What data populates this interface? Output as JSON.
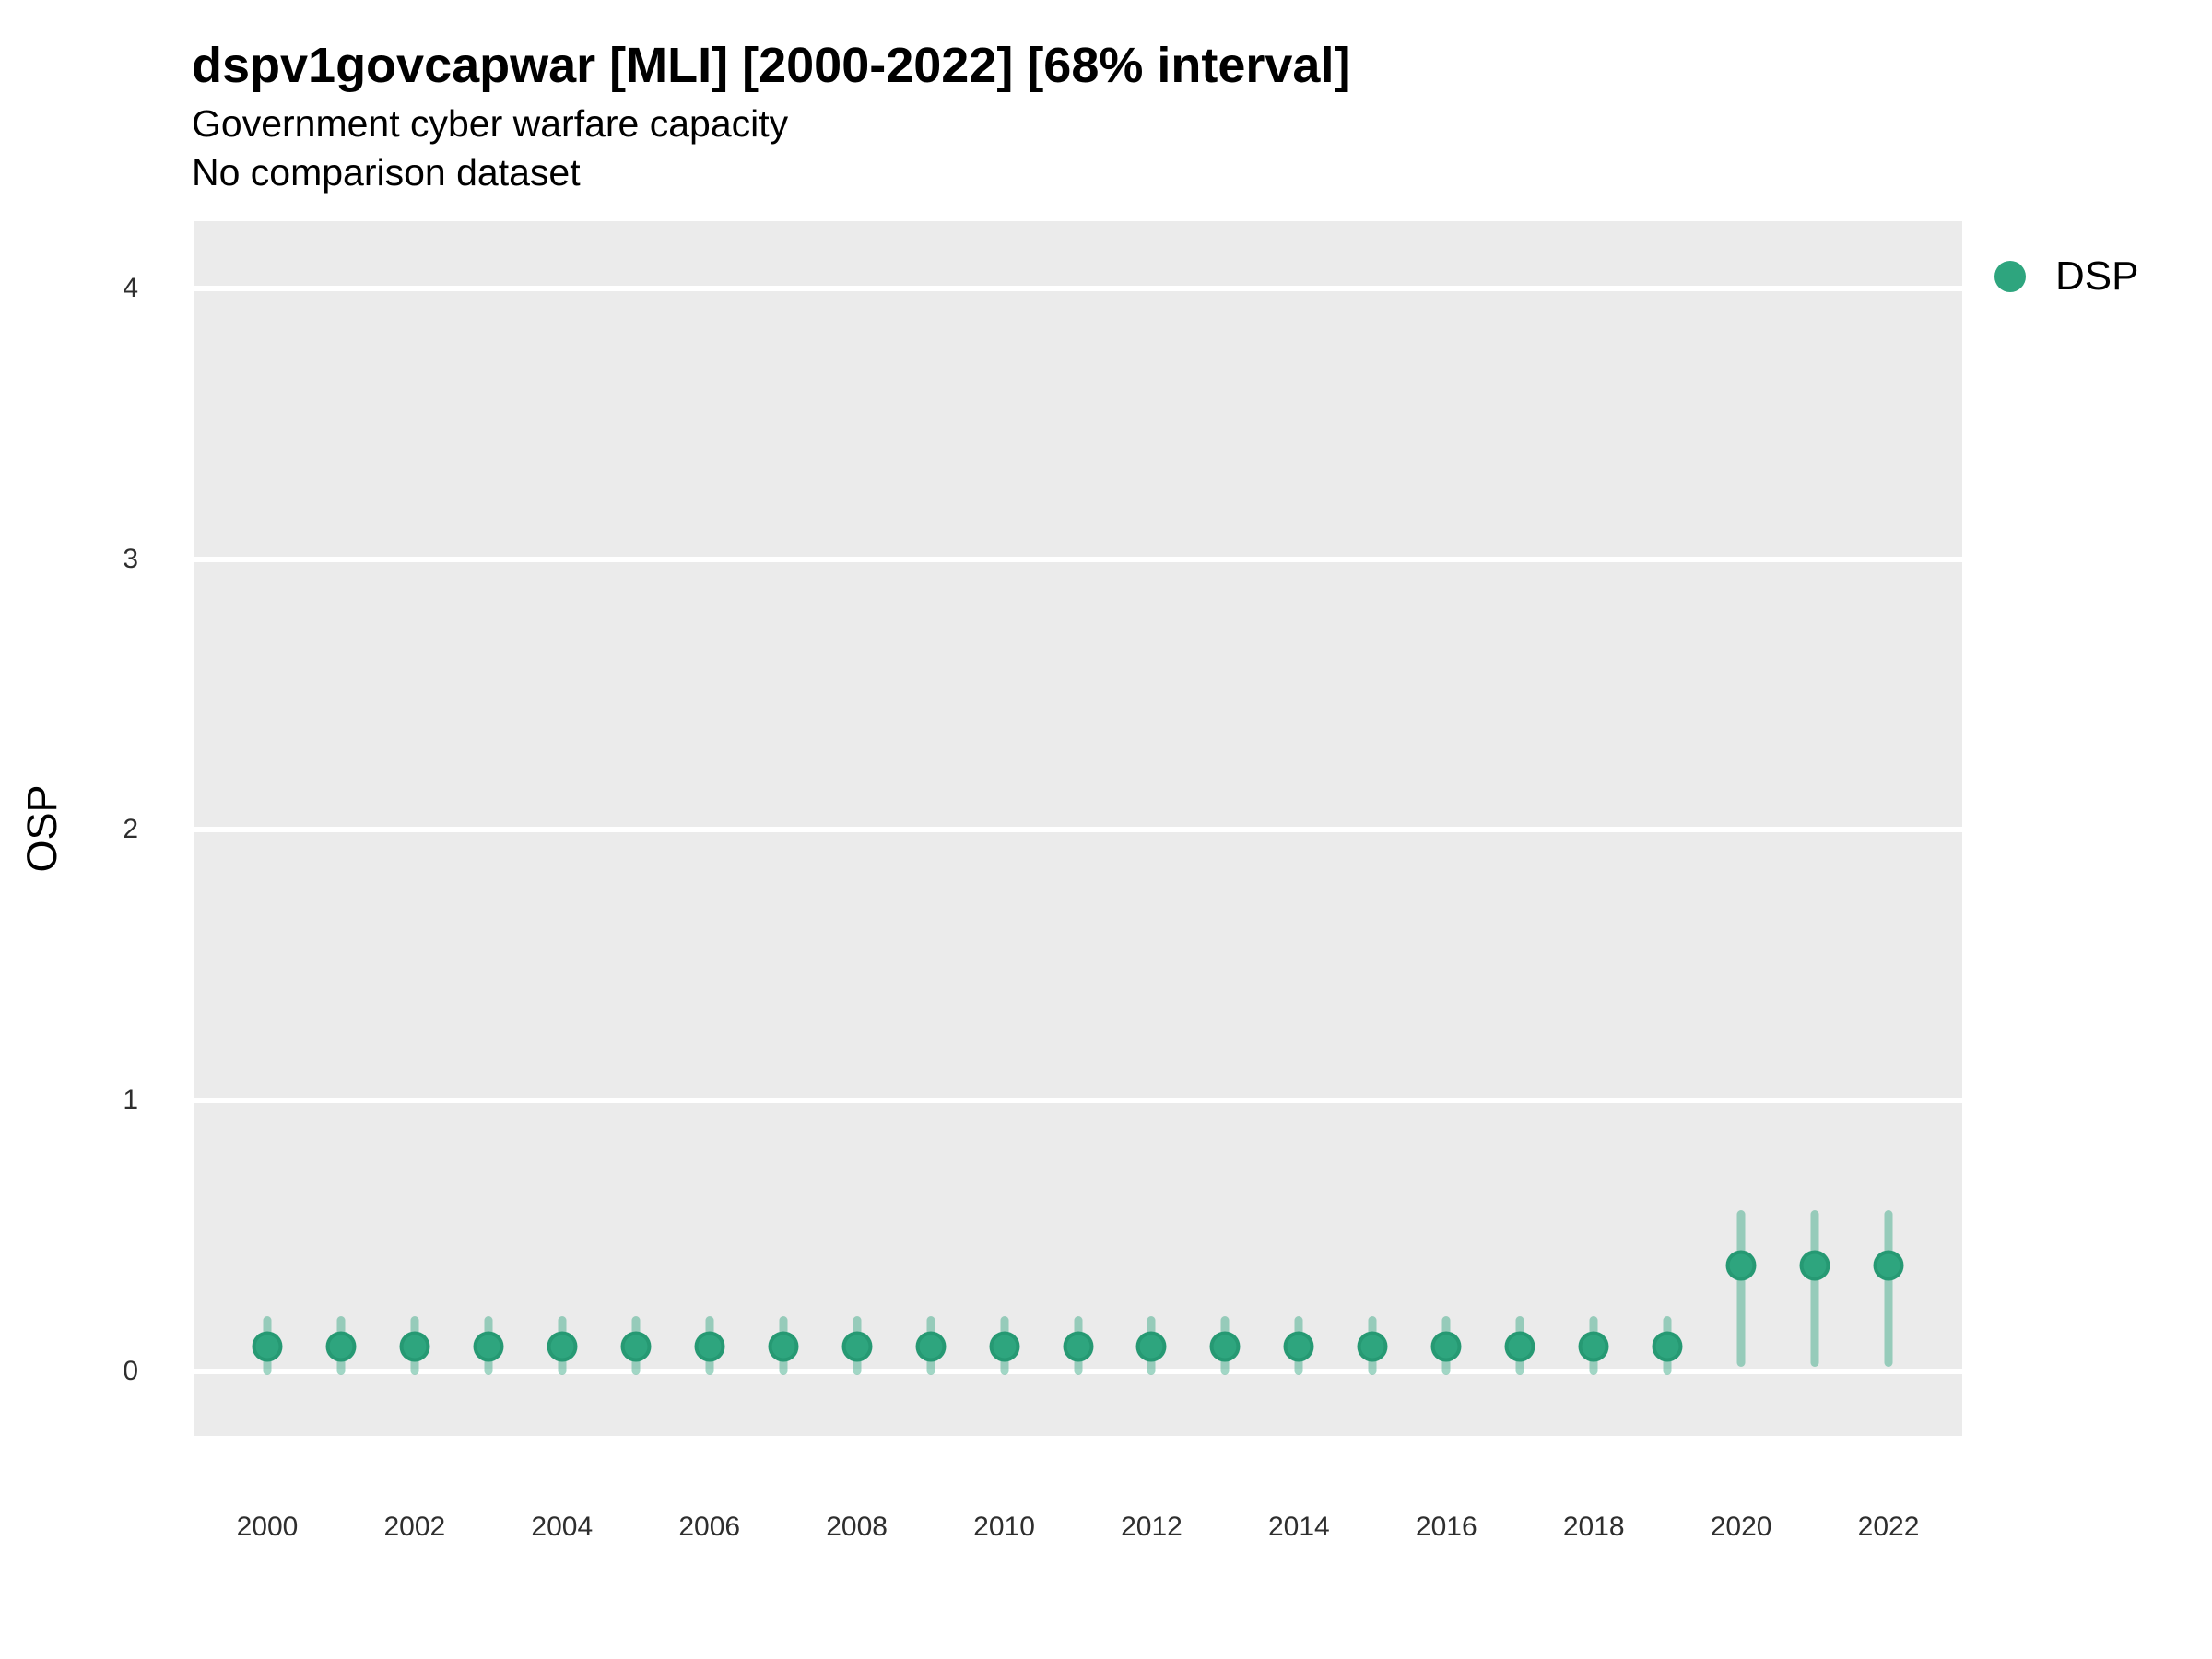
{
  "header": {
    "title": "dspv1govcapwar [MLI] [2000-2022] [68% interval]",
    "subtitle1": "Government cyber warfare capacity",
    "subtitle2": "No comparison dataset"
  },
  "legend": {
    "label": "DSP"
  },
  "colors": {
    "point": "#2EA57E",
    "point_ring": "rgba(27,134,98,0.38)",
    "errorbar": "rgba(46,165,126,0.45)",
    "panel_bg": "#EBEBEB",
    "gridline": "#FFFFFF"
  },
  "chart_data": {
    "type": "scatter",
    "title": "dspv1govcapwar [MLI] [2000-2022] [68% interval]",
    "subtitle": [
      "Government cyber warfare capacity",
      "No comparison dataset"
    ],
    "xlabel": "",
    "ylabel": "OSP",
    "interval": "68%",
    "legend_entries": [
      "DSP"
    ],
    "legend_position": "right",
    "grid": "horizontal-major-only",
    "xlim": [
      1999,
      2023
    ],
    "ylim": [
      -0.24,
      4.25
    ],
    "x_ticks": [
      2000,
      2002,
      2004,
      2006,
      2008,
      2010,
      2012,
      2014,
      2016,
      2018,
      2020,
      2022
    ],
    "y_ticks": [
      0,
      1,
      2,
      3,
      4
    ],
    "series": [
      {
        "name": "DSP",
        "points": [
          {
            "x": 2000,
            "y": 0.09,
            "lo": 0.0,
            "hi": 0.19
          },
          {
            "x": 2001,
            "y": 0.09,
            "lo": 0.0,
            "hi": 0.19
          },
          {
            "x": 2002,
            "y": 0.09,
            "lo": 0.0,
            "hi": 0.19
          },
          {
            "x": 2003,
            "y": 0.09,
            "lo": 0.0,
            "hi": 0.19
          },
          {
            "x": 2004,
            "y": 0.09,
            "lo": 0.0,
            "hi": 0.19
          },
          {
            "x": 2005,
            "y": 0.09,
            "lo": 0.0,
            "hi": 0.19
          },
          {
            "x": 2006,
            "y": 0.09,
            "lo": 0.0,
            "hi": 0.19
          },
          {
            "x": 2007,
            "y": 0.09,
            "lo": 0.0,
            "hi": 0.19
          },
          {
            "x": 2008,
            "y": 0.09,
            "lo": 0.0,
            "hi": 0.19
          },
          {
            "x": 2009,
            "y": 0.09,
            "lo": 0.0,
            "hi": 0.19
          },
          {
            "x": 2010,
            "y": 0.09,
            "lo": 0.0,
            "hi": 0.19
          },
          {
            "x": 2011,
            "y": 0.09,
            "lo": 0.0,
            "hi": 0.19
          },
          {
            "x": 2012,
            "y": 0.09,
            "lo": 0.0,
            "hi": 0.19
          },
          {
            "x": 2013,
            "y": 0.09,
            "lo": 0.0,
            "hi": 0.19
          },
          {
            "x": 2014,
            "y": 0.09,
            "lo": 0.0,
            "hi": 0.19
          },
          {
            "x": 2015,
            "y": 0.09,
            "lo": 0.0,
            "hi": 0.19
          },
          {
            "x": 2016,
            "y": 0.09,
            "lo": 0.0,
            "hi": 0.19
          },
          {
            "x": 2017,
            "y": 0.09,
            "lo": 0.0,
            "hi": 0.19
          },
          {
            "x": 2018,
            "y": 0.09,
            "lo": 0.0,
            "hi": 0.19
          },
          {
            "x": 2019,
            "y": 0.09,
            "lo": 0.0,
            "hi": 0.19
          },
          {
            "x": 2020,
            "y": 0.39,
            "lo": 0.03,
            "hi": 0.58
          },
          {
            "x": 2021,
            "y": 0.39,
            "lo": 0.03,
            "hi": 0.58
          },
          {
            "x": 2022,
            "y": 0.39,
            "lo": 0.03,
            "hi": 0.58
          }
        ]
      }
    ]
  }
}
